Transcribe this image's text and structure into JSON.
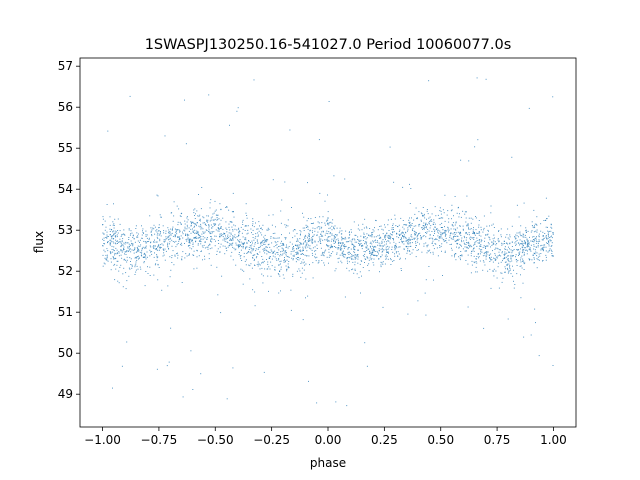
{
  "chart_data": {
    "type": "scatter",
    "title": "1SWASPJ130250.16-541027.0 Period 10060077.0s",
    "xlabel": "phase",
    "ylabel": "flux",
    "xlim": [
      -1.1,
      1.1
    ],
    "ylim": [
      48.2,
      57.2
    ],
    "xticks": [
      -1.0,
      -0.75,
      -0.5,
      -0.25,
      0.0,
      0.25,
      0.5,
      0.75,
      1.0
    ],
    "xtick_labels": [
      "−1.00",
      "−0.75",
      "−0.50",
      "−0.25",
      "0.00",
      "0.25",
      "0.50",
      "0.75",
      "1.00"
    ],
    "yticks": [
      49,
      50,
      51,
      52,
      53,
      54,
      55,
      56,
      57
    ],
    "ytick_labels": [
      "49",
      "50",
      "51",
      "52",
      "53",
      "54",
      "55",
      "56",
      "57"
    ],
    "grid": false,
    "legend": "none",
    "point_color": "#1f77b4",
    "series": [
      {
        "x_range": [
          -1.0,
          1.0
        ],
        "y_center_by_phase": [
          [
            -1.0,
            52.8
          ],
          [
            -0.9,
            52.5
          ],
          [
            -0.8,
            52.6
          ],
          [
            -0.7,
            52.8
          ],
          [
            -0.6,
            52.9
          ],
          [
            -0.5,
            53.0
          ],
          [
            -0.4,
            52.8
          ],
          [
            -0.3,
            52.6
          ],
          [
            -0.2,
            52.4
          ],
          [
            -0.1,
            52.7
          ],
          [
            0.0,
            52.8
          ],
          [
            0.1,
            52.5
          ],
          [
            0.2,
            52.6
          ],
          [
            0.3,
            52.8
          ],
          [
            0.4,
            52.9
          ],
          [
            0.5,
            53.0
          ],
          [
            0.6,
            52.8
          ],
          [
            0.7,
            52.6
          ],
          [
            0.8,
            52.4
          ],
          [
            0.9,
            52.7
          ],
          [
            1.0,
            52.8
          ]
        ],
        "core_spread": [
          51.5,
          54.0
        ],
        "outlier_range": [
          48.7,
          56.8
        ]
      }
    ]
  }
}
